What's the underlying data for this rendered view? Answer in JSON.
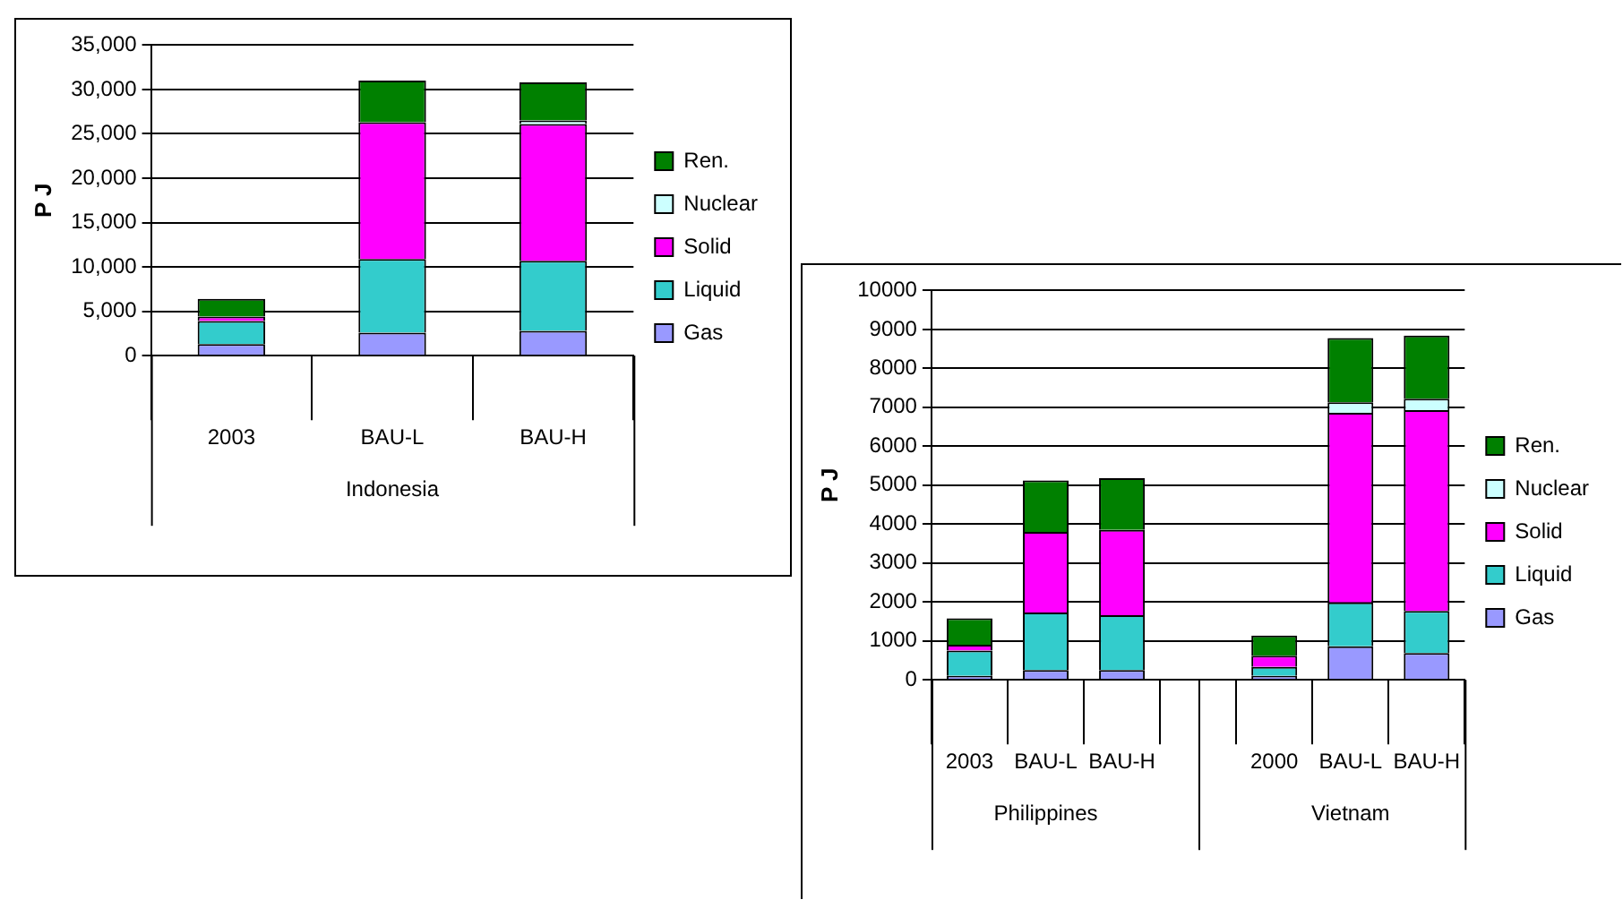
{
  "chart_data": [
    {
      "type": "bar",
      "stacked": true,
      "ylabel": "P J",
      "categories": [
        "2003",
        "BAU-L",
        "BAU-H"
      ],
      "annotations": [
        "Indonesia"
      ],
      "ylim": [
        0,
        35000
      ],
      "yticks": [
        0,
        {
          "value": 5000,
          "label": "5,000"
        },
        {
          "value": 10000,
          "label": "10,000"
        },
        {
          "value": 15000,
          "label": "15,000"
        },
        {
          "value": 20000,
          "label": "20,000"
        },
        {
          "value": 25000,
          "label": "25,000"
        },
        {
          "value": 30000,
          "label": "30,000"
        },
        {
          "value": 35000,
          "label": "35,000"
        }
      ],
      "grid": "y",
      "legend": "right",
      "series": [
        {
          "name": "Gas",
          "color": "#9999ff",
          "values": [
            1300,
            2600,
            2800
          ]
        },
        {
          "name": "Liquid",
          "color": "#33cccc",
          "values": [
            2600,
            8300,
            7900
          ]
        },
        {
          "name": "Solid",
          "color": "#ff00ff",
          "values": [
            500,
            15400,
            15400
          ]
        },
        {
          "name": "Nuclear",
          "color": "#ccffff",
          "values": [
            0,
            0,
            400
          ]
        },
        {
          "name": "Ren.",
          "color": "#008000",
          "values": [
            2000,
            4700,
            4300
          ]
        }
      ]
    },
    {
      "type": "bar",
      "stacked": true,
      "ylabel": "P J",
      "categories": [
        "2003",
        "BAU-L",
        "BAU-H",
        null,
        "2000",
        "BAU-L",
        "BAU-H"
      ],
      "annotations": [
        "Philippines",
        "Vietnam"
      ],
      "ylim": [
        0,
        10000
      ],
      "yticks": [
        0,
        1000,
        2000,
        3000,
        4000,
        5000,
        6000,
        7000,
        8000,
        9000,
        10000
      ],
      "grid": "y",
      "legend": "right",
      "series": [
        {
          "name": "Gas",
          "color": "#9999ff",
          "values": [
            100,
            250,
            250,
            null,
            100,
            860,
            690
          ]
        },
        {
          "name": "Liquid",
          "color": "#33cccc",
          "values": [
            650,
            1480,
            1410,
            null,
            230,
            1130,
            1080
          ]
        },
        {
          "name": "Solid",
          "color": "#ff00ff",
          "values": [
            150,
            2070,
            2190,
            null,
            290,
            4870,
            5160
          ]
        },
        {
          "name": "Nuclear",
          "color": "#ccffff",
          "values": [
            0,
            0,
            0,
            null,
            0,
            270,
            290
          ]
        },
        {
          "name": "Ren.",
          "color": "#008000",
          "values": [
            680,
            1320,
            1330,
            null,
            520,
            1650,
            1620
          ]
        }
      ]
    }
  ]
}
